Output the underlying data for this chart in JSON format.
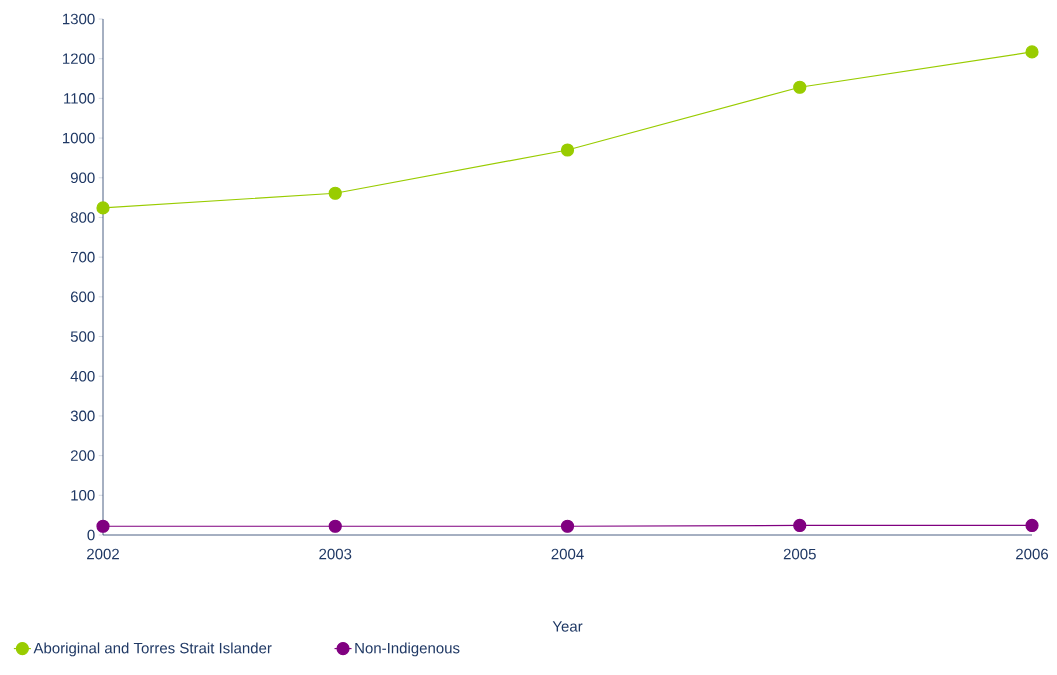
{
  "chart_data": {
    "type": "line",
    "xlabel": "Year",
    "categories": [
      "2002",
      "2003",
      "2004",
      "2005",
      "2006"
    ],
    "series": [
      {
        "name": "Aboriginal and Torres Strait Islander",
        "color": "#99cc00",
        "values": [
          824,
          861,
          970,
          1128,
          1217
        ]
      },
      {
        "name": "Non-Indigenous",
        "color": "#800080",
        "values": [
          22,
          22,
          22,
          24,
          24
        ]
      }
    ],
    "ylim": [
      0,
      1300
    ],
    "yticks": [
      0,
      100,
      200,
      300,
      400,
      500,
      600,
      700,
      800,
      900,
      1000,
      1100,
      1200,
      1300
    ],
    "grid": false,
    "legend": "bottom",
    "marker": "circle",
    "line_style": "solid"
  }
}
